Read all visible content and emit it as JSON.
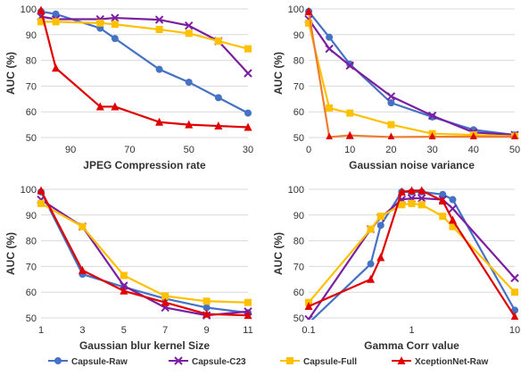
{
  "chart_data": [
    {
      "type": "line",
      "xlabel": "JPEG Compression rate",
      "ylabel": "AUC (%)",
      "x_reversed": true,
      "xlim": [
        100,
        30
      ],
      "ylim": [
        50,
        100
      ],
      "xticks": [
        90,
        70,
        50,
        30
      ],
      "yticks": [
        50,
        60,
        70,
        80,
        90,
        100
      ],
      "grid": "horizontal",
      "series": [
        {
          "name": "Capsule-Raw",
          "x": [
            100,
            95,
            80,
            75,
            60,
            50,
            40,
            30
          ],
          "y": [
            99,
            98,
            92.5,
            88.5,
            76.5,
            71.5,
            65.5,
            59.5
          ]
        },
        {
          "name": "Capsule-C23",
          "x": [
            100,
            95,
            80,
            75,
            60,
            50,
            40,
            30
          ],
          "y": [
            97,
            96,
            96,
            96.5,
            95.8,
            93.5,
            87.5,
            75
          ]
        },
        {
          "name": "Capsule-Full",
          "x": [
            100,
            95,
            80,
            75,
            60,
            50,
            40,
            30
          ],
          "y": [
            95,
            95,
            94.5,
            94,
            92,
            90.5,
            87.5,
            84.5
          ]
        },
        {
          "name": "XceptionNet-Raw",
          "x": [
            100,
            95,
            80,
            75,
            60,
            50,
            40,
            30
          ],
          "y": [
            99.5,
            77,
            62,
            62,
            56,
            55,
            54.5,
            54
          ]
        }
      ]
    },
    {
      "type": "line",
      "xlabel": "Gaussian noise variance",
      "ylabel": "AUC (%)",
      "xlim": [
        0,
        50
      ],
      "ylim": [
        50,
        100
      ],
      "xticks": [
        0,
        10,
        20,
        30,
        40,
        50
      ],
      "yticks": [
        50,
        60,
        70,
        80,
        90,
        100
      ],
      "grid": "horizontal",
      "series": [
        {
          "name": "Capsule-Raw",
          "x": [
            0,
            5,
            10,
            20,
            30,
            40,
            50
          ],
          "y": [
            99,
            89,
            78.5,
            63.5,
            58,
            53,
            51
          ]
        },
        {
          "name": "Capsule-C23",
          "x": [
            0,
            5,
            10,
            20,
            30,
            40,
            50
          ],
          "y": [
            96,
            84.5,
            78,
            66,
            58.5,
            52,
            51
          ]
        },
        {
          "name": "Capsule-Full",
          "x": [
            0,
            5,
            10,
            20,
            30,
            40,
            50
          ],
          "y": [
            94.5,
            61.5,
            59.5,
            55,
            51.5,
            51,
            50.5
          ]
        },
        {
          "name": "XceptionNet-Raw",
          "x": [
            0,
            5,
            10,
            20,
            30,
            40,
            50
          ],
          "y": [
            99,
            50.2,
            50.8,
            50.2,
            50.3,
            50.3,
            50.3
          ]
        }
      ]
    },
    {
      "type": "line",
      "xlabel": "Gaussian blur kernel Size",
      "ylabel": "AUC (%)",
      "xlim": [
        1,
        11
      ],
      "ylim": [
        50,
        100
      ],
      "xticks": [
        1,
        3,
        5,
        7,
        9,
        11
      ],
      "yticks": [
        50,
        60,
        70,
        80,
        90,
        100
      ],
      "grid": "horizontal",
      "series": [
        {
          "name": "Capsule-Raw",
          "x": [
            1,
            3,
            5,
            7,
            9,
            11
          ],
          "y": [
            99,
            67,
            62,
            57.5,
            54,
            52
          ]
        },
        {
          "name": "Capsule-C23",
          "x": [
            1,
            3,
            5,
            7,
            9,
            11
          ],
          "y": [
            96,
            85.5,
            62.5,
            54,
            51,
            52.5
          ]
        },
        {
          "name": "Capsule-Full",
          "x": [
            1,
            3,
            5,
            7,
            9,
            11
          ],
          "y": [
            94.5,
            85.5,
            66.5,
            58.5,
            56.5,
            56
          ]
        },
        {
          "name": "XceptionNet-Raw",
          "x": [
            1,
            3,
            5,
            7,
            9,
            11
          ],
          "y": [
            99.5,
            68.5,
            60.5,
            56,
            51.5,
            51
          ]
        }
      ]
    },
    {
      "type": "line",
      "xlabel": "Gamma Corr value",
      "ylabel": "AUC (%)",
      "xscale": "log",
      "xlim": [
        0.1,
        10
      ],
      "ylim": [
        50,
        100
      ],
      "xticks": [
        0.1,
        1,
        10
      ],
      "xtick_labels": [
        "0.1",
        "1",
        "10"
      ],
      "yticks": [
        50,
        60,
        70,
        80,
        90,
        100
      ],
      "grid": "horizontal",
      "series": [
        {
          "name": "Capsule-Raw",
          "x": [
            0.1,
            0.4,
            0.5,
            0.8,
            1,
            1.25,
            2,
            2.5,
            10
          ],
          "y": [
            48,
            71,
            86,
            99,
            99,
            99,
            98,
            96,
            53
          ]
        },
        {
          "name": "Capsule-C23",
          "x": [
            0.1,
            0.4,
            0.5,
            0.8,
            1,
            1.25,
            2,
            2.5,
            10
          ],
          "y": [
            49.5,
            84.5,
            89,
            96,
            96.5,
            96.5,
            96,
            92.5,
            65.5
          ]
        },
        {
          "name": "Capsule-Full",
          "x": [
            0.1,
            0.4,
            0.5,
            0.8,
            1,
            1.25,
            2,
            2.5,
            10
          ],
          "y": [
            56,
            84.5,
            89.5,
            94,
            94.5,
            94,
            89.5,
            85.5,
            60
          ]
        },
        {
          "name": "XceptionNet-Raw",
          "x": [
            0.1,
            0.4,
            0.5,
            0.8,
            1,
            1.25,
            2,
            2.5,
            10
          ],
          "y": [
            54.5,
            65,
            73.5,
            99,
            99.5,
            99.5,
            95.5,
            88,
            50.5
          ]
        }
      ]
    }
  ],
  "legend": [
    {
      "name": "Capsule-Raw",
      "color": "#4472C4",
      "marker": "circle"
    },
    {
      "name": "Capsule-C23",
      "color": "#7B1FA2",
      "marker": "x"
    },
    {
      "name": "Capsule-Full",
      "color": "#FFC000",
      "marker": "square"
    },
    {
      "name": "XceptionNet-Raw",
      "color": "#E00000",
      "marker": "triangle"
    }
  ],
  "legend_position": "bottom",
  "series_styles": {
    "Capsule-Raw": {
      "color": "#4472C4",
      "marker": "circle"
    },
    "Capsule-C23": {
      "color": "#7B1FA2",
      "marker": "x"
    },
    "Capsule-Full": {
      "color": "#FFC000",
      "marker": "square"
    },
    "XceptionNet-Raw": {
      "color": "#E00000",
      "marker": "triangle"
    }
  },
  "panel_overrides": [
    {},
    {
      "XceptionNet-Raw": {
        "line_color": "#ED7D31",
        "marker_color": "#E00000"
      }
    },
    {},
    {}
  ]
}
